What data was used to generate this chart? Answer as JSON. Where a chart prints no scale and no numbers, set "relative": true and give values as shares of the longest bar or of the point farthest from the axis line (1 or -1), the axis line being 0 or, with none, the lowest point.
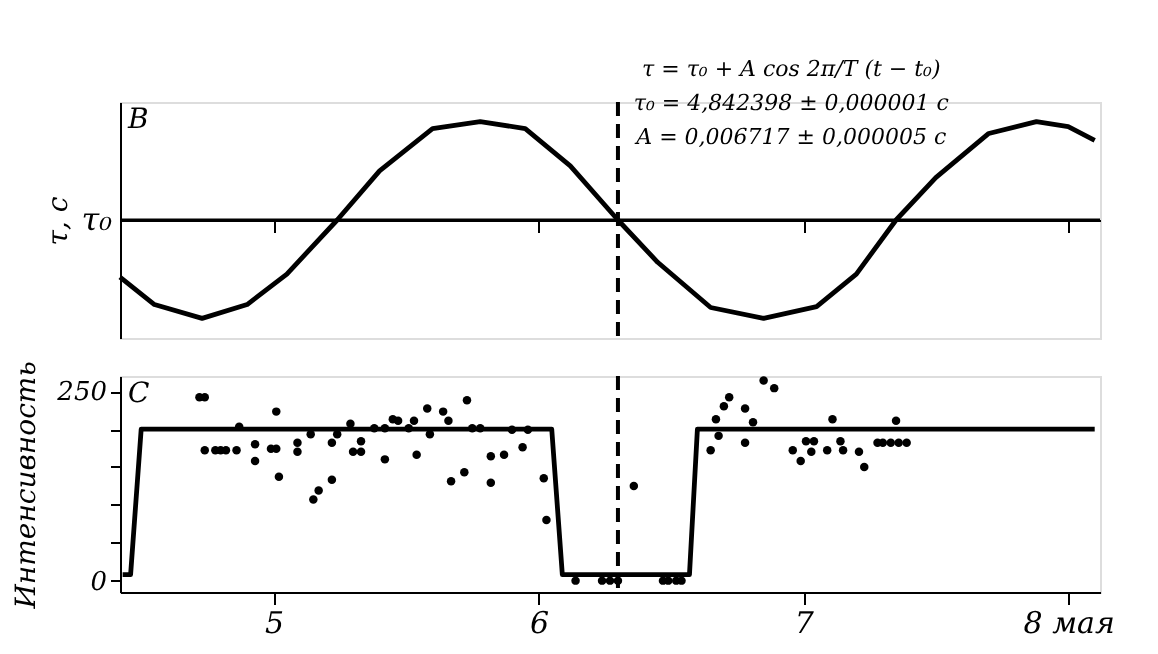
{
  "chart_data": [
    {
      "type": "line",
      "ylabel": "τ, c",
      "relative": true,
      "line_style": "solid",
      "color": "#000000",
      "grid": false,
      "tick_labels": false,
      "xlim": [
        4.42,
        8.12
      ],
      "xticks": [
        5,
        6,
        7,
        8
      ],
      "x": [
        4.42,
        4.55,
        4.73,
        4.9,
        5.05,
        5.24,
        5.4,
        5.6,
        5.78,
        5.95,
        6.12,
        6.3,
        6.45,
        6.65,
        6.85,
        7.05,
        7.2,
        7.35,
        7.5,
        7.7,
        7.88,
        8.0,
        8.1
      ],
      "values": [
        -0.58,
        -0.86,
        -1.0,
        -0.86,
        -0.55,
        0,
        0.5,
        0.93,
        1,
        0.93,
        0.55,
        0,
        -0.43,
        -0.89,
        -1,
        -0.88,
        -0.55,
        0,
        0.43,
        0.88,
        1,
        0.95,
        0.81
      ],
      "ref_lines": [
        {
          "axis": "y",
          "value": 0,
          "label": "τ₀"
        },
        {
          "axis": "x",
          "value": 6.3,
          "line_style": "dashed",
          "color": "#000000"
        }
      ],
      "annotations": [
        "B",
        "τ = τ₀ + A cos 2π/T (t − t₀)",
        "τ₀ = 4,842398 ± 0,000001 c",
        "A = 0,006717 ± 0,000005 c"
      ]
    },
    {
      "type": "scatter",
      "ylabel": "Интенсивность",
      "grid": false,
      "xlim": [
        4.42,
        8.12
      ],
      "xticks": [
        5,
        6,
        7,
        {
          "value": 8,
          "label": "8 мая"
        }
      ],
      "ylim": [
        -15,
        270
      ],
      "yticks": [
        0,
        {
          "value": 50,
          "label": null
        },
        {
          "value": 100,
          "label": null
        },
        {
          "value": 150,
          "label": null
        },
        {
          "value": 200,
          "label": null
        },
        250
      ],
      "series": [
        {
          "type": "scatter",
          "color": "#000000",
          "marker": "circle",
          "x": [
            4.72,
            4.74,
            4.74,
            4.78,
            4.8,
            4.82,
            4.86,
            4.87,
            4.93,
            4.93,
            4.99,
            5.01,
            5.01,
            5.02,
            5.09,
            5.09,
            5.14,
            5.15,
            5.17,
            5.22,
            5.22,
            5.24,
            5.29,
            5.3,
            5.33,
            5.33,
            5.38,
            5.42,
            5.42,
            5.45,
            5.47,
            5.51,
            5.53,
            5.54,
            5.58,
            5.59,
            5.64,
            5.66,
            5.67,
            5.72,
            5.73,
            5.75,
            5.78,
            5.82,
            5.82,
            5.87,
            5.9,
            5.94,
            5.96,
            6.02,
            6.03,
            6.14,
            6.24,
            6.27,
            6.3,
            6.36,
            6.47,
            6.49,
            6.52,
            6.54,
            6.65,
            6.67,
            6.68,
            6.7,
            6.72,
            6.78,
            6.78,
            6.81,
            6.85,
            6.89,
            6.96,
            6.99,
            7.01,
            7.03,
            7.04,
            7.09,
            7.11,
            7.14,
            7.15,
            7.21,
            7.23,
            7.28,
            7.3,
            7.33,
            7.35,
            7.36,
            7.39
          ],
          "values": [
            242,
            242,
            172,
            172,
            172,
            172,
            172,
            203,
            180,
            158,
            174,
            174,
            223,
            137,
            182,
            170,
            193,
            107,
            119,
            182,
            133,
            193,
            207,
            170,
            170,
            184,
            201,
            201,
            160,
            213,
            211,
            201,
            211,
            166,
            227,
            193,
            223,
            211,
            131,
            143,
            238,
            201,
            201,
            129,
            164,
            166,
            199,
            176,
            199,
            135,
            80,
            0,
            0,
            0,
            0,
            125,
            0,
            0,
            0,
            0,
            172,
            213,
            191,
            230,
            242,
            182,
            227,
            209,
            264,
            254,
            172,
            158,
            184,
            170,
            184,
            172,
            213,
            184,
            172,
            170,
            150,
            182,
            182,
            182,
            211,
            182,
            182
          ]
        },
        {
          "type": "line",
          "color": "#000000",
          "x": [
            4.43,
            4.46,
            4.5,
            6.05,
            6.09,
            6.57,
            6.6,
            8.1
          ],
          "values": [
            8,
            8,
            200,
            200,
            8,
            8,
            200,
            200
          ]
        }
      ],
      "ref_lines": [
        {
          "axis": "x",
          "value": 6.3,
          "line_style": "dashed",
          "color": "#000000"
        }
      ],
      "annotations": [
        "C"
      ]
    }
  ]
}
